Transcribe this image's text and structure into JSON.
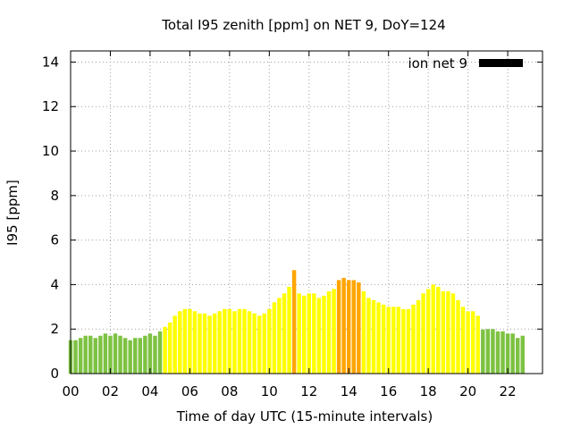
{
  "chart_data": {
    "type": "bar",
    "title": "Total I95 zenith [ppm] on NET 9, DoY=124",
    "xlabel": "Time of day UTC (15-minute intervals)",
    "ylabel": "I95 [ppm]",
    "xlim": [
      0,
      23.75
    ],
    "ylim": [
      0,
      14.5
    ],
    "x_ticks": [
      "00",
      "02",
      "04",
      "06",
      "08",
      "10",
      "12",
      "14",
      "16",
      "18",
      "20",
      "22"
    ],
    "x_tick_values": [
      0,
      2,
      4,
      6,
      8,
      10,
      12,
      14,
      16,
      18,
      20,
      22
    ],
    "y_ticks": [
      "0",
      "2",
      "4",
      "6",
      "8",
      "10",
      "12",
      "14"
    ],
    "y_tick_values": [
      0,
      2,
      4,
      6,
      8,
      10,
      12,
      14
    ],
    "grid": true,
    "legend": {
      "label": "ion net 9",
      "color": "#000000",
      "position": "top-right"
    },
    "bar_width_hours": 0.2,
    "x_start_hour": 0,
    "x_step_hours": 0.25,
    "values": [
      1.5,
      1.5,
      1.6,
      1.7,
      1.7,
      1.6,
      1.7,
      1.8,
      1.7,
      1.8,
      1.7,
      1.6,
      1.5,
      1.6,
      1.6,
      1.7,
      1.8,
      1.7,
      1.9,
      2.1,
      2.3,
      2.6,
      2.8,
      2.9,
      2.9,
      2.8,
      2.7,
      2.7,
      2.6,
      2.7,
      2.8,
      2.9,
      2.9,
      2.8,
      2.9,
      2.9,
      2.8,
      2.7,
      2.6,
      2.7,
      2.9,
      3.2,
      3.4,
      3.6,
      3.9,
      4.65,
      3.6,
      3.5,
      3.6,
      3.6,
      3.4,
      3.5,
      3.7,
      3.8,
      4.2,
      4.3,
      4.2,
      4.2,
      4.1,
      3.7,
      3.4,
      3.3,
      3.2,
      3.1,
      3.0,
      3.0,
      3.0,
      2.9,
      2.9,
      3.1,
      3.3,
      3.6,
      3.8,
      4.0,
      3.9,
      3.7,
      3.7,
      3.6,
      3.3,
      3.0,
      2.8,
      2.8,
      2.6,
      1.98,
      2.0,
      2.0,
      1.9,
      1.9,
      1.8,
      1.8,
      1.6,
      1.7
    ],
    "color_thresholds": [
      {
        "max": 2.0,
        "color": "#7dc242"
      },
      {
        "max": 4.0,
        "color": "#ffff00"
      },
      {
        "max": 100,
        "color": "#ffa500"
      }
    ],
    "special_colors": {
      "83": "#7dc242"
    }
  }
}
